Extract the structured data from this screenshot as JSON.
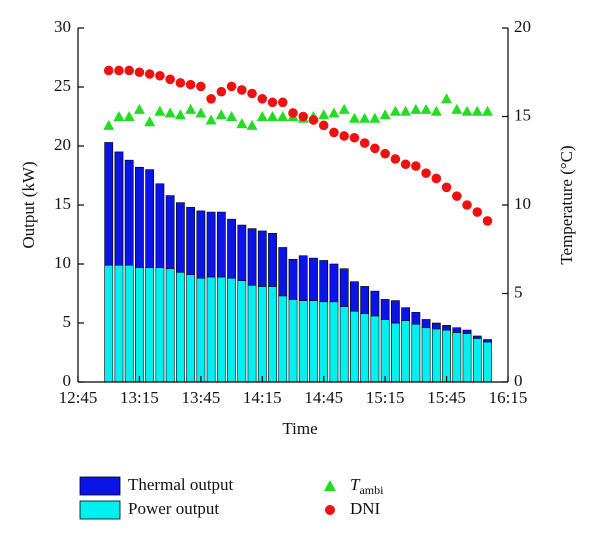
{
  "chart_data": {
    "type": "bar",
    "stacked": true,
    "xlabel": "Time",
    "ylabel": "Output (kW)",
    "y2label": "Temperature (°C)",
    "x": [
      "13:00",
      "13:05",
      "13:10",
      "13:15",
      "13:20",
      "13:25",
      "13:30",
      "13:35",
      "13:40",
      "13:45",
      "13:50",
      "13:55",
      "14:00",
      "14:05",
      "14:10",
      "14:15",
      "14:20",
      "14:25",
      "14:30",
      "14:35",
      "14:40",
      "14:45",
      "14:50",
      "14:55",
      "15:00",
      "15:05",
      "15:10",
      "15:15",
      "15:20",
      "15:25",
      "15:30",
      "15:35",
      "15:40",
      "15:45",
      "15:50",
      "15:55",
      "16:00",
      "16:05"
    ],
    "xlim": [
      "12:45",
      "16:15"
    ],
    "xticks": [
      "12:45",
      "13:15",
      "13:45",
      "14:15",
      "14:45",
      "15:15",
      "15:45",
      "16:15"
    ],
    "ylim": [
      0,
      30
    ],
    "yticks": [
      0,
      5,
      10,
      15,
      20,
      25,
      30
    ],
    "y2lim": [
      0,
      20
    ],
    "y2ticks": [
      0,
      5,
      10,
      15,
      20
    ],
    "series": [
      {
        "name": "Thermal output",
        "type": "bar",
        "color": "#0a14e6",
        "values": [
          10.4,
          9.6,
          8.9,
          8.5,
          8.3,
          7.1,
          6.2,
          5.9,
          5.7,
          5.7,
          5.5,
          5.5,
          5.0,
          4.7,
          4.8,
          4.7,
          4.5,
          4.1,
          3.4,
          3.8,
          3.6,
          3.5,
          3.2,
          3.2,
          2.5,
          2.3,
          2.1,
          1.7,
          1.9,
          1.1,
          1.0,
          0.7,
          0.5,
          0.4,
          0.4,
          0.3,
          0.2,
          0.2
        ]
      },
      {
        "name": "Power output",
        "type": "bar",
        "color": "#00f0f0",
        "values": [
          9.9,
          9.9,
          9.9,
          9.7,
          9.7,
          9.7,
          9.6,
          9.3,
          9.1,
          8.8,
          8.9,
          8.9,
          8.8,
          8.6,
          8.2,
          8.1,
          8.1,
          7.3,
          7.0,
          6.9,
          6.9,
          6.8,
          6.8,
          6.4,
          6.0,
          5.8,
          5.6,
          5.3,
          5.0,
          5.2,
          4.9,
          4.6,
          4.5,
          4.4,
          4.2,
          4.1,
          3.7,
          3.4
        ]
      },
      {
        "name": "Tambi",
        "type": "scatter",
        "marker": "triangle",
        "axis": "y2",
        "color": "#22dd22",
        "values": [
          14.5,
          15,
          15,
          15.4,
          14.7,
          15.3,
          15.2,
          15.1,
          15.4,
          15.2,
          14.8,
          15.1,
          15.0,
          14.6,
          14.5,
          15.0,
          15.0,
          15.0,
          15.0,
          14.9,
          15.0,
          15.1,
          15.2,
          15.4,
          14.9,
          14.9,
          14.9,
          15.1,
          15.3,
          15.3,
          15.4,
          15.4,
          15.3,
          16.0,
          15.4,
          15.3,
          15.3,
          15.3
        ]
      },
      {
        "name": "DNI",
        "type": "scatter",
        "marker": "circle",
        "axis": "y2",
        "color": "#ee1111",
        "values": [
          17.6,
          17.6,
          17.6,
          17.5,
          17.4,
          17.3,
          17.1,
          16.9,
          16.8,
          16.7,
          16.0,
          16.4,
          16.7,
          16.5,
          16.3,
          16.0,
          15.8,
          15.8,
          15.2,
          15.0,
          14.8,
          14.5,
          14.1,
          13.9,
          13.8,
          13.5,
          13.2,
          12.9,
          12.6,
          12.3,
          12.2,
          11.8,
          11.5,
          11.0,
          10.5,
          10.0,
          9.6,
          9.1
        ]
      }
    ]
  }
}
